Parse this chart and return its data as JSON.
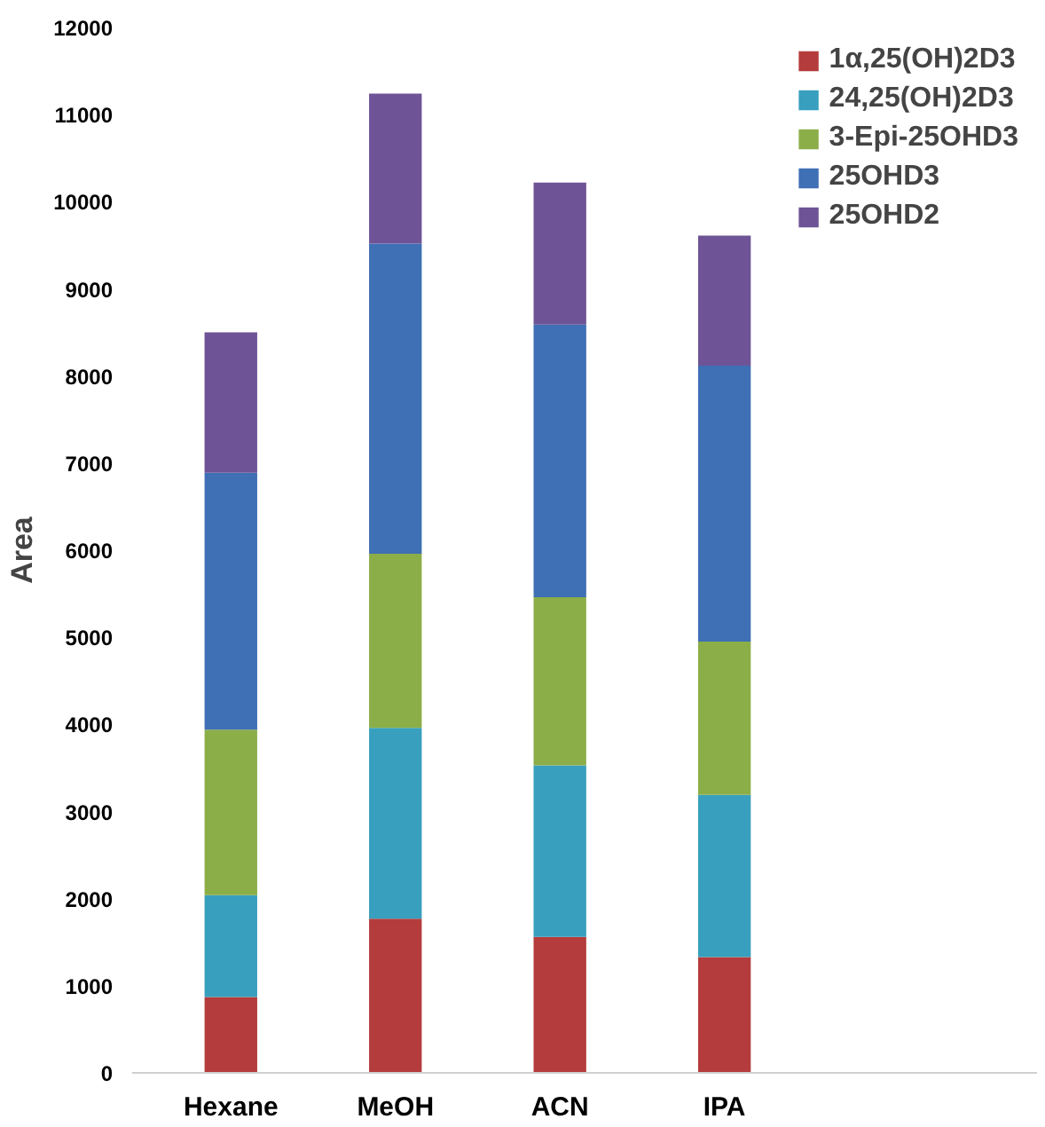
{
  "chart_data": {
    "type": "bar",
    "stacked": true,
    "ylabel": "Area",
    "categories": [
      "Hexane",
      "MeOH",
      "ACN",
      "IPA"
    ],
    "ylim": [
      0,
      12000
    ],
    "yticks": [
      0,
      1000,
      2000,
      3000,
      4000,
      5000,
      6000,
      7000,
      8000,
      9000,
      10000,
      11000,
      12000
    ],
    "grid": false,
    "legend": "top right",
    "series": [
      {
        "name": "1α,25(OH)2D3",
        "color": "#b43c3c",
        "values": [
          870,
          1770,
          1560,
          1330
        ]
      },
      {
        "name": "24,25(OH)2D3",
        "color": "#389fbe",
        "values": [
          1170,
          2190,
          1970,
          1860
        ]
      },
      {
        "name": "3-Epi-25OHD3",
        "color": "#8cae48",
        "values": [
          1900,
          2000,
          1930,
          1760
        ]
      },
      {
        "name": "25OHD3",
        "color": "#3f6fb4",
        "values": [
          2950,
          3560,
          3130,
          3170
        ]
      },
      {
        "name": "25OHD2",
        "color": "#6e5396",
        "values": [
          1610,
          1720,
          1630,
          1490
        ]
      }
    ]
  }
}
